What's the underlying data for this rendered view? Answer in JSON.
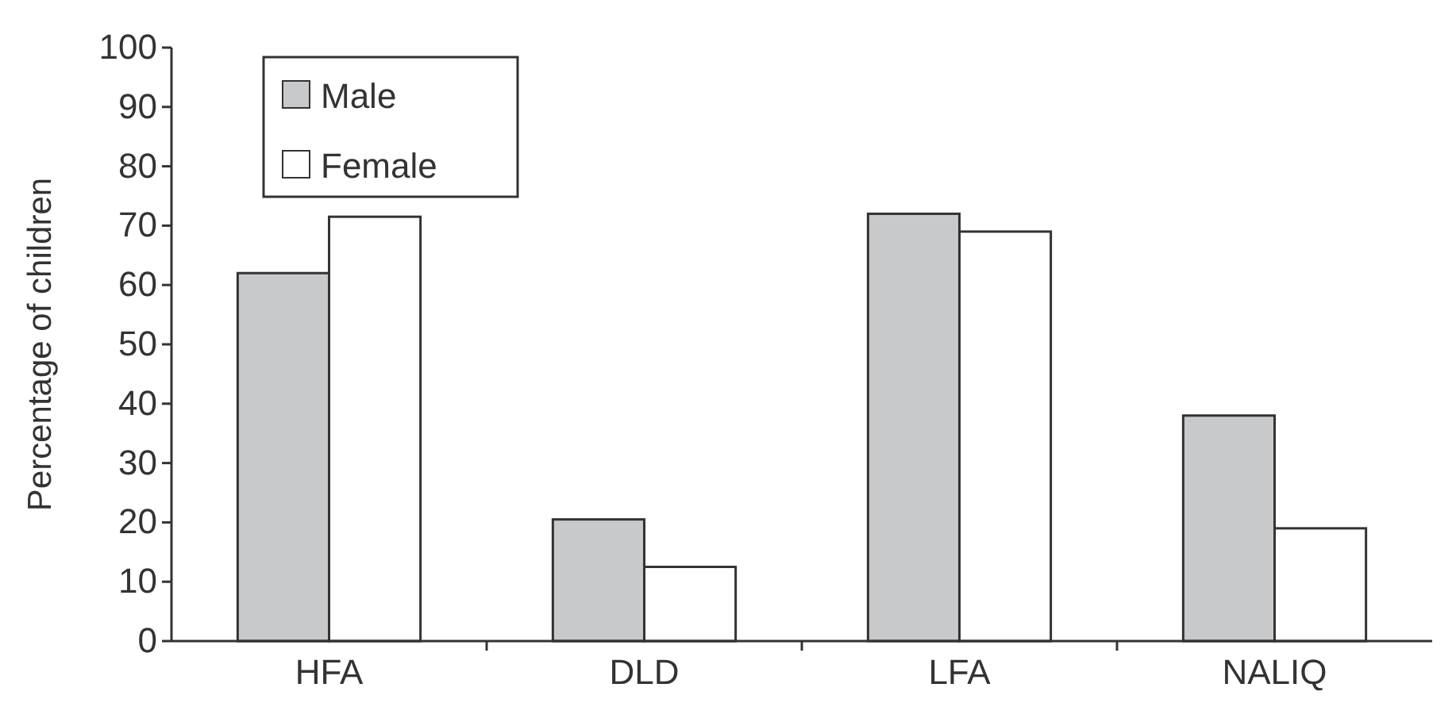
{
  "chart_data": {
    "type": "bar",
    "ylabel": "Percentage of children",
    "categories": [
      "HFA",
      "DLD",
      "LFA",
      "NALIQ"
    ],
    "series": [
      {
        "name": "Male",
        "color": "#c8c9cb",
        "values": [
          62,
          20.5,
          72,
          38
        ]
      },
      {
        "name": "Female",
        "color": "#ffffff",
        "values": [
          71.5,
          12.5,
          69,
          19
        ]
      }
    ],
    "ylim": [
      0,
      100
    ],
    "yticks": [
      0,
      10,
      20,
      30,
      40,
      50,
      60,
      70,
      80,
      90,
      100
    ],
    "grid": false,
    "legend": "top left"
  }
}
